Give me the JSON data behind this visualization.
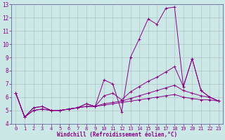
{
  "xlabel": "Windchill (Refroidissement éolien,°C)",
  "bg_color": "#cce8e6",
  "line_color": "#880088",
  "grid_color": "#aabbbb",
  "text_color": "#880088",
  "axis_color": "#6666aa",
  "xlim": [
    0,
    23
  ],
  "ylim": [
    4,
    13
  ],
  "yticks": [
    4,
    5,
    6,
    7,
    8,
    9,
    10,
    11,
    12,
    13
  ],
  "xticks": [
    0,
    1,
    2,
    3,
    4,
    5,
    6,
    7,
    8,
    9,
    10,
    11,
    12,
    13,
    14,
    15,
    16,
    17,
    18,
    19,
    20,
    21,
    22,
    23
  ],
  "series": [
    [
      6.3,
      4.5,
      5.2,
      5.3,
      5.0,
      5.0,
      5.1,
      5.2,
      5.5,
      5.3,
      7.3,
      7.0,
      4.9,
      9.0,
      10.4,
      11.9,
      11.5,
      12.7,
      12.8,
      6.8,
      8.9,
      6.5,
      6.0,
      5.7
    ],
    [
      6.3,
      4.5,
      5.2,
      5.3,
      5.0,
      5.0,
      5.1,
      5.2,
      5.5,
      5.3,
      6.1,
      6.3,
      5.8,
      6.4,
      6.8,
      7.2,
      7.5,
      7.9,
      8.3,
      6.8,
      8.9,
      6.5,
      6.0,
      5.7
    ],
    [
      6.3,
      4.5,
      5.0,
      5.1,
      5.0,
      5.0,
      5.1,
      5.2,
      5.3,
      5.3,
      5.5,
      5.6,
      5.7,
      5.9,
      6.1,
      6.3,
      6.5,
      6.7,
      6.9,
      6.5,
      6.3,
      6.1,
      6.0,
      5.7
    ],
    [
      6.3,
      4.5,
      5.0,
      5.1,
      5.0,
      5.0,
      5.1,
      5.2,
      5.3,
      5.3,
      5.4,
      5.5,
      5.6,
      5.7,
      5.8,
      5.9,
      6.0,
      6.1,
      6.2,
      6.0,
      5.9,
      5.8,
      5.8,
      5.7
    ]
  ],
  "figsize": [
    3.2,
    2.0
  ],
  "dpi": 100
}
